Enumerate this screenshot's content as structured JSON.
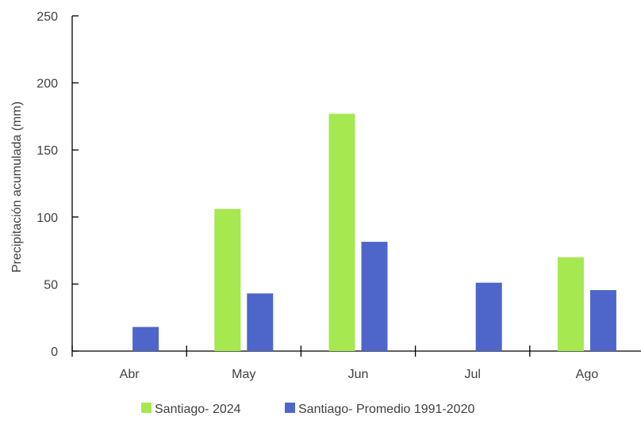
{
  "chart_data": {
    "type": "bar",
    "title": "",
    "xlabel": "",
    "ylabel": "Precipitación acumulada (mm)",
    "categories": [
      "Abr",
      "May",
      "Jun",
      "Jul",
      "Ago"
    ],
    "ylim": [
      0,
      250
    ],
    "yticks": [
      0,
      50,
      100,
      150,
      200,
      250
    ],
    "grid": false,
    "legend_position": "bottom",
    "series": [
      {
        "name": "Santiago- 2024",
        "color": "#a6e850",
        "values": [
          0,
          106,
          177,
          0,
          70
        ]
      },
      {
        "name": "Santiago- Promedio 1991-2020",
        "color": "#4e66c9",
        "values": [
          18,
          43,
          81.5,
          51,
          45.5
        ]
      }
    ]
  }
}
